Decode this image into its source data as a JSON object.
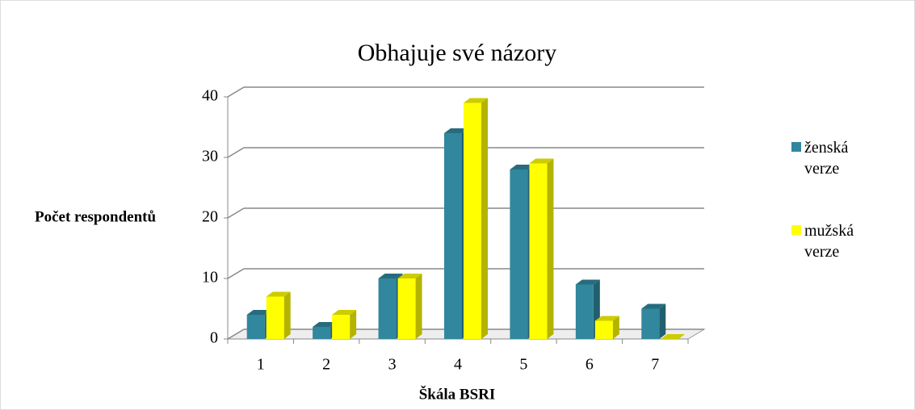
{
  "chart_data": {
    "type": "bar",
    "title": "Obhajuje své názory",
    "x_label": "Škála BSRI",
    "y_label": "Počet respondentů",
    "categories": [
      "1",
      "2",
      "3",
      "4",
      "5",
      "6",
      "7"
    ],
    "series": [
      {
        "name": "ženská verze",
        "color": "#31879d",
        "values": [
          4,
          2,
          10,
          34,
          28,
          9,
          5
        ]
      },
      {
        "name": "mužská verze",
        "color": "#ffff00",
        "values": [
          7,
          4,
          10,
          39,
          29,
          3,
          0
        ]
      }
    ],
    "ylim": [
      0,
      40
    ],
    "yticks": [
      0,
      10,
      20,
      30,
      40
    ],
    "grid": true,
    "legend": "right"
  }
}
